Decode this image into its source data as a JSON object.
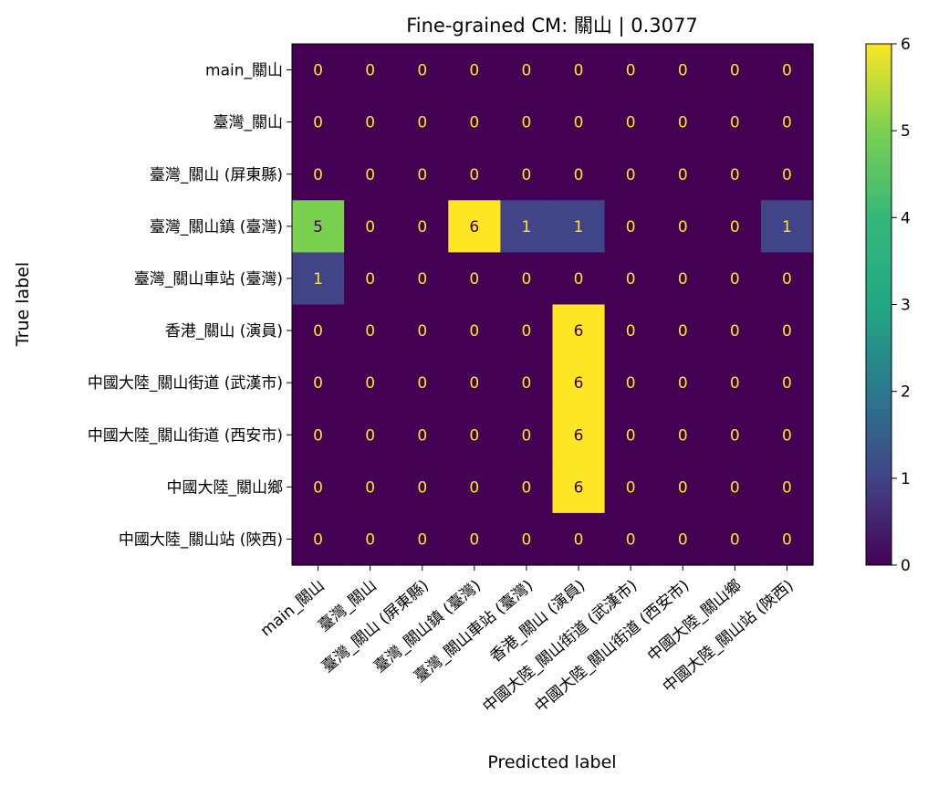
{
  "chart_data": {
    "type": "heatmap",
    "title": "Fine-grained CM: 關山 | 0.3077",
    "xlabel": "Predicted label",
    "ylabel": "True label",
    "categories": [
      "main_關山",
      "臺灣_關山",
      "臺灣_關山 (屏東縣)",
      "臺灣_關山鎮 (臺灣)",
      "臺灣_關山車站 (臺灣)",
      "香港_關山 (演員)",
      "中國大陸_關山街道 (武漢市)",
      "中國大陸_關山街道 (西安市)",
      "中國大陸_關山鄉",
      "中國大陸_關山站 (陝西)"
    ],
    "matrix": [
      [
        0,
        0,
        0,
        0,
        0,
        0,
        0,
        0,
        0,
        0
      ],
      [
        0,
        0,
        0,
        0,
        0,
        0,
        0,
        0,
        0,
        0
      ],
      [
        0,
        0,
        0,
        0,
        0,
        0,
        0,
        0,
        0,
        0
      ],
      [
        5,
        0,
        0,
        6,
        1,
        1,
        0,
        0,
        0,
        1
      ],
      [
        1,
        0,
        0,
        0,
        0,
        0,
        0,
        0,
        0,
        0
      ],
      [
        0,
        0,
        0,
        0,
        0,
        6,
        0,
        0,
        0,
        0
      ],
      [
        0,
        0,
        0,
        0,
        0,
        6,
        0,
        0,
        0,
        0
      ],
      [
        0,
        0,
        0,
        0,
        0,
        6,
        0,
        0,
        0,
        0
      ],
      [
        0,
        0,
        0,
        0,
        0,
        6,
        0,
        0,
        0,
        0
      ],
      [
        0,
        0,
        0,
        0,
        0,
        0,
        0,
        0,
        0,
        0
      ]
    ],
    "colorbar": {
      "min": 0,
      "max": 6,
      "ticks": [
        0,
        1,
        2,
        3,
        4,
        5,
        6
      ],
      "colormap": "viridis"
    },
    "grid": false
  }
}
